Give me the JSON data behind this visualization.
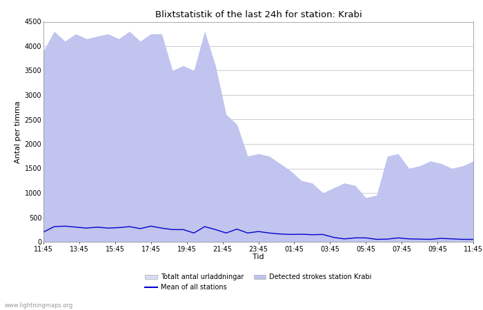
{
  "title": "Blixtstatistik of the last 24h for station: Krabi",
  "xlabel": "Tid",
  "ylabel": "Antal per timma",
  "watermark": "www.lightningmaps.org",
  "x_labels": [
    "11:45",
    "13:45",
    "15:45",
    "17:45",
    "19:45",
    "21:45",
    "23:45",
    "01:45",
    "03:45",
    "05:45",
    "07:45",
    "09:45",
    "11:45"
  ],
  "ylim": [
    0,
    4500
  ],
  "yticks": [
    0,
    500,
    1000,
    1500,
    2000,
    2500,
    3000,
    3500,
    4000,
    4500
  ],
  "legend": {
    "totalt_label": "Totalt antal urladdningar",
    "detected_label": "Detected strokes station Krabi",
    "mean_label": "Mean of all stations"
  },
  "color_totalt": "#d8dcf5",
  "color_detected": "#c0c4ee",
  "color_mean": "#0000cc",
  "totalt_values": [
    3900,
    4300,
    4100,
    4250,
    4150,
    4200,
    4250,
    4150,
    4300,
    4100,
    4250,
    4250,
    3500,
    3600,
    3500,
    4300,
    3600,
    2600,
    2400,
    1750,
    1800,
    1750,
    1600,
    1450,
    1250,
    1200,
    1000,
    1100,
    1200,
    1150,
    900,
    950,
    1750,
    1800,
    1500,
    1550,
    1650,
    1600,
    1500,
    1550,
    1650
  ],
  "detected_values": [
    3900,
    4300,
    4100,
    4250,
    4150,
    4200,
    4250,
    4150,
    4300,
    4100,
    4250,
    4250,
    3500,
    3600,
    3500,
    4300,
    3600,
    2600,
    2400,
    1750,
    1800,
    1750,
    1600,
    1450,
    1250,
    1200,
    1000,
    1100,
    1200,
    1150,
    900,
    950,
    1750,
    1800,
    1500,
    1550,
    1650,
    1600,
    1500,
    1550,
    1650
  ],
  "mean_values": [
    200,
    310,
    320,
    300,
    280,
    300,
    280,
    290,
    310,
    270,
    320,
    280,
    250,
    250,
    180,
    310,
    250,
    180,
    260,
    180,
    210,
    180,
    160,
    150,
    155,
    145,
    150,
    90,
    60,
    80,
    80,
    50,
    55,
    80,
    60,
    55,
    50,
    70,
    60,
    50,
    50
  ]
}
